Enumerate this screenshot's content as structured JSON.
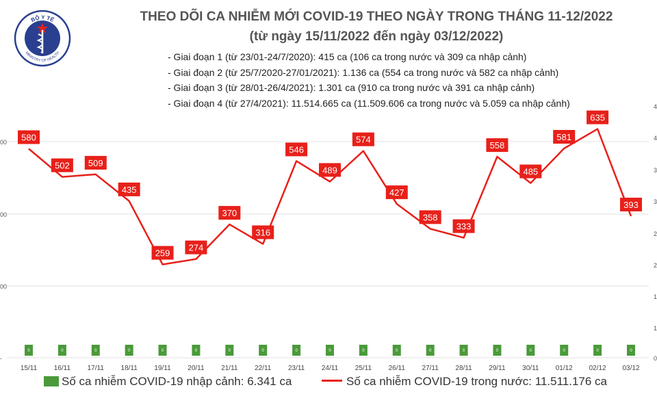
{
  "header": {
    "title": "THEO DÕI CA NHIỄM MỚI COVID-19 THEO NGÀY TRONG THÁNG 11-12/2022",
    "subtitle": "(từ ngày 15/11/2022 đến ngày 03/12/2022)"
  },
  "notes": [
    "- Giai đoạn 1 (từ 23/01-24/7/2020): 415 ca (106 ca trong nước và 309 ca nhập cảnh)",
    "- Giai đoạn 2 (từ 25/7/2020-27/01/2021): 1.136 ca (554 ca trong nước và 582 ca nhập cảnh)",
    "- Giai đoạn 3 (từ 28/01-26/4/2021): 1.301 ca (910 ca trong nước và 391 ca nhập cảnh)",
    "- Giai đoạn 4 (từ 27/4/2021): 11.514.665 ca (11.509.606 ca trong nước và 5.059 ca nhập cảnh)"
  ],
  "logo": {
    "top_text": "BỘ Y TẾ",
    "bottom_text": "MINISTRY OF HEALTH"
  },
  "colors": {
    "line": "#e8201a",
    "bar": "#4a9a3a",
    "label_bg": "#e8201a",
    "label_text": "#ffffff"
  },
  "chart_data": {
    "type": "bar+line",
    "categories": [
      "15/11",
      "16/11",
      "17/11",
      "18/11",
      "19/11",
      "20/11",
      "21/11",
      "22/11",
      "23/11",
      "24/11",
      "25/11",
      "26/11",
      "27/11",
      "28/11",
      "29/11",
      "30/11",
      "01/12",
      "02/12",
      "03/12"
    ],
    "series": [
      {
        "name": "Số ca nhiễm COVID-19 trong nước: 11.511.176 ca",
        "type": "line",
        "axis": "left",
        "values": [
          580,
          502,
          509,
          435,
          259,
          274,
          370,
          316,
          546,
          489,
          574,
          427,
          358,
          333,
          558,
          485,
          581,
          635,
          393
        ]
      },
      {
        "name": "Số ca nhiễm COVID-19 nhập cảnh: 6.341 ca",
        "type": "bar",
        "axis": "right",
        "values": [
          0,
          0,
          0,
          0,
          0,
          0,
          0,
          0,
          0,
          0,
          0,
          0,
          0,
          0,
          0,
          0,
          0,
          0,
          0
        ]
      }
    ],
    "left_axis": {
      "ticks": [
        "00",
        "00",
        "00",
        "-"
      ]
    },
    "right_axis": {
      "ticks": [
        "4",
        "4",
        "3",
        "3",
        "2",
        "2",
        "1",
        "1",
        "0"
      ]
    },
    "grid": "horizontal",
    "legend": "bottom"
  }
}
